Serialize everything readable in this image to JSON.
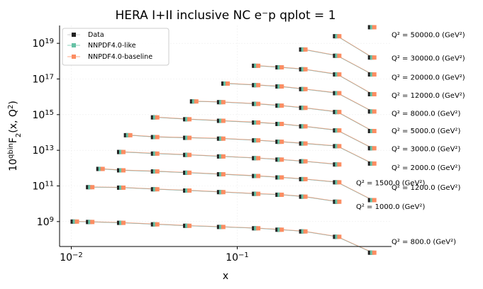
{
  "chart_data": {
    "type": "scatter",
    "title": "HERA I+II inclusive NC e⁻p qplot = 1",
    "xlabel": "x",
    "ylabel": "10^qbin F2(x, Q2)",
    "xscale": "log",
    "yscale": "log",
    "xlim": [
      0.0085,
      0.85
    ],
    "ylim": [
      40000000.0,
      1e+20
    ],
    "grid": true,
    "legend_position": "upper-left",
    "series_names": [
      "Data",
      "NNPDF4.0-like",
      "NNPDF4.0-baseline"
    ],
    "colors": {
      "data": "#222222",
      "like": "#66c2a5",
      "baseline": "#fc8d62"
    },
    "xticks": [
      {
        "value": 0.01,
        "label": "10",
        "exp": "−2"
      },
      {
        "value": 0.1,
        "label": "10",
        "exp": "−1"
      }
    ],
    "yticks": [
      {
        "value": 1000000000.0,
        "label": "10",
        "exp": "9"
      },
      {
        "value": 100000000000.0,
        "label": "10",
        "exp": "11"
      },
      {
        "value": 10000000000000.0,
        "label": "10",
        "exp": "13"
      },
      {
        "value": 1000000000000000.0,
        "label": "10",
        "exp": "15"
      },
      {
        "value": 1e+17,
        "label": "10",
        "exp": "17"
      },
      {
        "value": 1e+19,
        "label": "10",
        "exp": "19"
      }
    ],
    "bins": [
      {
        "label": "Q² = 800.0 (GeV²)",
        "label_y": 55000000.0,
        "x": [
          0.0105,
          0.013,
          0.02,
          0.032,
          0.05,
          0.08,
          0.13,
          0.18,
          0.25,
          0.4,
          0.65
        ],
        "y": [
          1000000000.0,
          950000000.0,
          850000000.0,
          700000000.0,
          580000000.0,
          500000000.0,
          420000000.0,
          350000000.0,
          280000000.0,
          140000000.0,
          18000000.0
        ]
      },
      {
        "label": "Q² = 1000.0 (GeV²)",
        "label_y": 5000000000.0,
        "x": [
          0.013,
          0.02,
          0.032,
          0.05,
          0.08,
          0.13,
          0.18,
          0.25,
          0.4
        ],
        "y": [
          85000000000.0,
          80000000000.0,
          65000000000.0,
          55000000000.0,
          45000000000.0,
          36000000000.0,
          32000000000.0,
          25000000000.0,
          13000000000.0
        ]
      },
      {
        "label": "Q² = 1200.0 (GeV²)",
        "label_y": 60000000000.0,
        "x": [
          0.015,
          0.02,
          0.032,
          0.05,
          0.08,
          0.13,
          0.18,
          0.25,
          0.4,
          0.65
        ],
        "y": [
          900000000000.0,
          750000000000.0,
          650000000000.0,
          550000000000.0,
          450000000000.0,
          360000000000.0,
          300000000000.0,
          240000000000.0,
          160000000000.0,
          16000000000.0
        ]
      },
      {
        "label": "Q² = 1500.0 (GeV²)",
        "label_y": 110000000000.0,
        "x": [
          0.02,
          0.032,
          0.05,
          0.08,
          0.13,
          0.18,
          0.25,
          0.4
        ],
        "y": [
          8000000000000.0,
          6500000000000.0,
          5500000000000.0,
          4500000000000.0,
          3600000000000.0,
          3000000000000.0,
          2400000000000.0,
          1600000000000.0
        ]
      },
      {
        "label": "Q² = 2000.0 (GeV²)",
        "label_y": 800000000000.0,
        "x": [
          0.022,
          0.032,
          0.05,
          0.08,
          0.13,
          0.18,
          0.25,
          0.4,
          0.65
        ],
        "y": [
          70000000000000.0,
          55000000000000.0,
          50000000000000.0,
          45000000000000.0,
          36000000000000.0,
          30000000000000.0,
          24000000000000.0,
          17000000000000.0,
          1800000000000.0
        ]
      },
      {
        "label": "Q² = 3000.0 (GeV²)",
        "label_y": 9000000000000.0,
        "x": [
          0.032,
          0.05,
          0.08,
          0.13,
          0.18,
          0.25,
          0.4,
          0.65
        ],
        "y": [
          700000000000000.0,
          550000000000000.0,
          450000000000000.0,
          360000000000000.0,
          300000000000000.0,
          220000000000000.0,
          130000000000000.0,
          13000000000000.0
        ]
      },
      {
        "label": "Q² = 5000.0 (GeV²)",
        "label_y": 90000000000000.0,
        "x": [
          0.055,
          0.08,
          0.13,
          0.18,
          0.25,
          0.4,
          0.65
        ],
        "y": [
          5500000000000000.0,
          5000000000000000.0,
          4000000000000000.0,
          3200000000000000.0,
          2400000000000000.0,
          1400000000000000.0,
          120000000000000.0
        ]
      },
      {
        "label": "Q² = 8000.0 (GeV²)",
        "label_y": 850000000000000.0,
        "x": [
          0.085,
          0.13,
          0.18,
          0.25,
          0.4,
          0.65
        ],
        "y": [
          5.5e+16,
          4.5e+16,
          3.8e+16,
          2.7e+16,
          1.6e+16,
          1500000000000000.0
        ]
      },
      {
        "label": "Q² = 12000.0 (GeV²)",
        "label_y": 9000000000000000.0,
        "x": [
          0.13,
          0.18,
          0.25,
          0.4,
          0.65
        ],
        "y": [
          5.5e+17,
          4.5e+17,
          3.5e+17,
          1.8e+17,
          1.4e+16
        ]
      },
      {
        "label": "Q² = 20000.0 (GeV²)",
        "label_y": 9e+16,
        "x": [
          0.25,
          0.4,
          0.65
        ],
        "y": [
          4.5e+18,
          2e+18,
          1.8e+17
        ]
      },
      {
        "label": "Q² = 30000.0 (GeV²)",
        "label_y": 1.1e+18,
        "x": [
          0.4,
          0.65
        ],
        "y": [
          2.5e+19,
          1.6e+18
        ]
      },
      {
        "label": "Q² = 50000.0 (GeV²)",
        "label_y": 2.2e+19,
        "x": [
          0.65
        ],
        "y": [
          8e+19
        ]
      }
    ]
  }
}
